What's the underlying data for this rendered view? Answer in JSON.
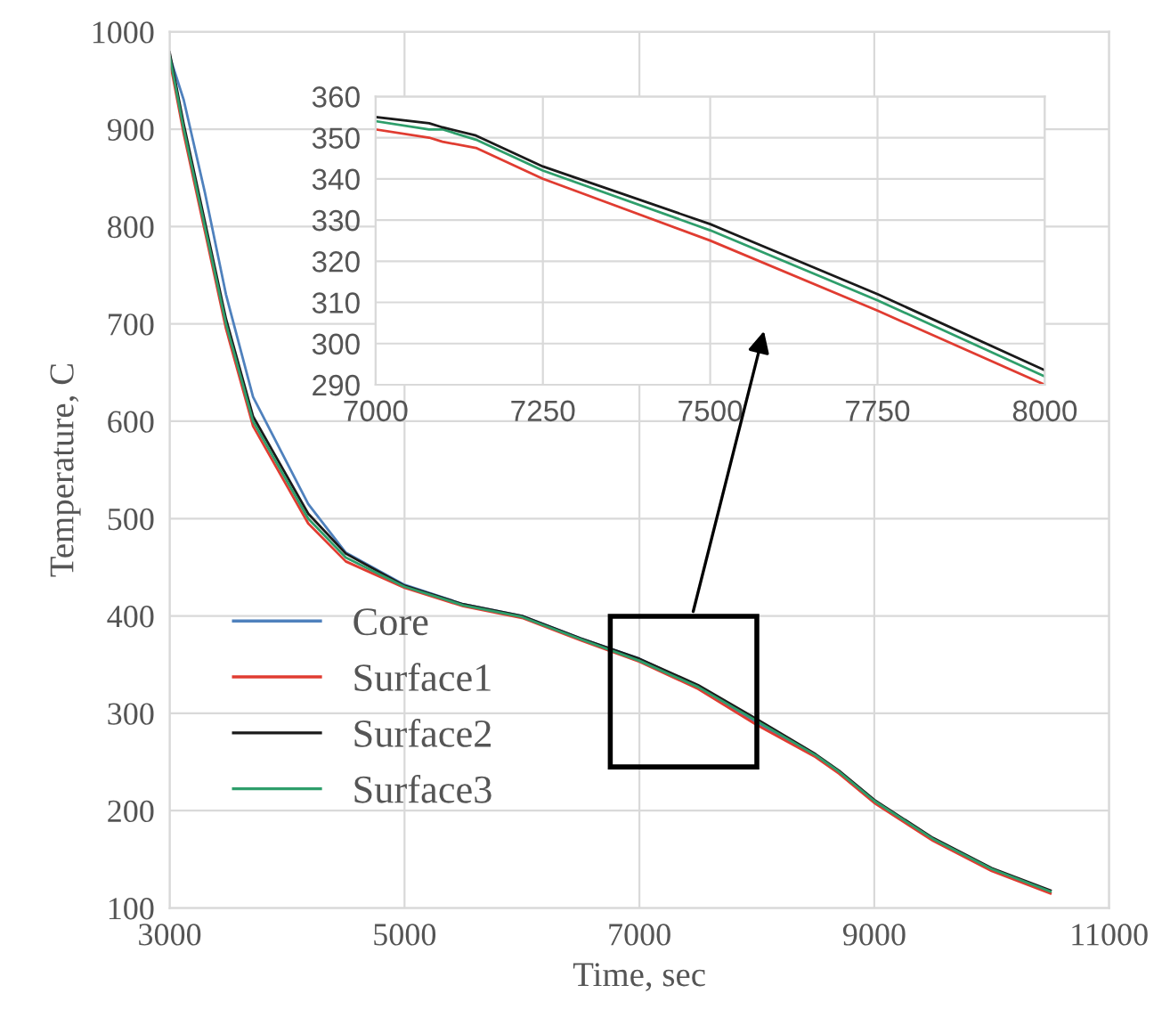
{
  "chart_data": [
    {
      "type": "line",
      "xlabel": "Time, sec",
      "ylabel": "Temperature, C",
      "xlim": [
        3000,
        11000
      ],
      "ylim": [
        100,
        1000
      ],
      "xticks": [
        3000,
        5000,
        7000,
        9000,
        11000
      ],
      "yticks": [
        100,
        200,
        300,
        400,
        500,
        600,
        700,
        800,
        900,
        1000
      ],
      "grid": true,
      "legend": "bottom left",
      "x": [
        3000,
        3120,
        3300,
        3480,
        3710,
        4180,
        4500,
        5000,
        5500,
        6000,
        6500,
        7000,
        7500,
        8000,
        8500,
        8700,
        9000,
        9500,
        10000,
        10500
      ],
      "series": [
        {
          "name": "Core",
          "color": "#4f81bd",
          "values": [
            975,
            930,
            835,
            730,
            625,
            515,
            465,
            432,
            412,
            400,
            377,
            356,
            328,
            290,
            257,
            null,
            null,
            null,
            null,
            null
          ]
        },
        {
          "name": "Surface1",
          "color": "#e03c31",
          "values": [
            971,
            895,
            795,
            695,
            595,
            495,
            456,
            429,
            410,
            398,
            375,
            353,
            325,
            288,
            255,
            238,
            208,
            169,
            138,
            115
          ]
        },
        {
          "name": "Surface2",
          "color": "#1a1a1a",
          "values": [
            979,
            905,
            805,
            705,
            605,
            505,
            464,
            431,
            412,
            400,
            377,
            356,
            329,
            294,
            258,
            241,
            211,
            172,
            141,
            118
          ]
        },
        {
          "name": "Surface3",
          "color": "#2e9e6b",
          "values": [
            975,
            900,
            800,
            700,
            600,
            500,
            460,
            430,
            411,
            399,
            376,
            354,
            327,
            292,
            257,
            240,
            210,
            171,
            140,
            117
          ]
        }
      ]
    },
    {
      "type": "line",
      "xlim": [
        7000,
        8000
      ],
      "ylim": [
        290,
        360
      ],
      "xticks": [
        7000,
        7250,
        7500,
        7750,
        8000
      ],
      "yticks": [
        290,
        300,
        310,
        320,
        330,
        340,
        350,
        360
      ],
      "grid": true,
      "x": [
        7000,
        7080,
        7100,
        7150,
        7250,
        7500,
        7750,
        8000
      ],
      "series": [
        {
          "color": "#e03c31",
          "values": [
            352,
            350,
            349,
            347.5,
            340,
            325,
            308,
            290
          ]
        },
        {
          "color": "#2e9e6b",
          "values": [
            354,
            352,
            352,
            349.5,
            342,
            327.5,
            310.5,
            292
          ]
        },
        {
          "color": "#1a1a1a",
          "values": [
            355,
            353.5,
            352.5,
            350.5,
            343,
            329,
            312,
            293.5
          ]
        }
      ]
    }
  ]
}
